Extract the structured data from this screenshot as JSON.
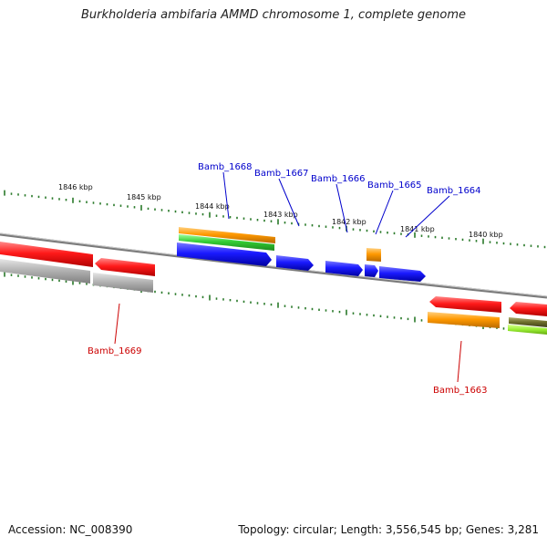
{
  "title": "Burkholderia ambifaria AMMD chromosome 1, complete genome",
  "footer": {
    "accession": "Accession: NC_008390",
    "summary": "Topology: circular; Length: 3,556,545 bp; Genes: 3,281"
  },
  "kbp_labels": [
    "1846 kbp",
    "1845 kbp",
    "1844 kbp",
    "1843 kbp",
    "1842 kbp",
    "1841 kbp",
    "1840 kbp"
  ],
  "gene_labels_top": [
    "Bamb_1668",
    "Bamb_1667",
    "Bamb_1666",
    "Bamb_1665",
    "Bamb_1664"
  ],
  "gene_labels_bottom": [
    "Bamb_1669",
    "Bamb_1663"
  ],
  "colors": {
    "forward_cds": "#1a1aff",
    "reverse_cds": "#ff1a1a",
    "orange_feature": "#ff9900",
    "green_feature": "#33cc33",
    "gray_feature": "#aaaaaa",
    "backbone": "#888888",
    "tick": "#2a7a2a",
    "label_top": "#0000cc",
    "label_bottom": "#cc0000"
  }
}
